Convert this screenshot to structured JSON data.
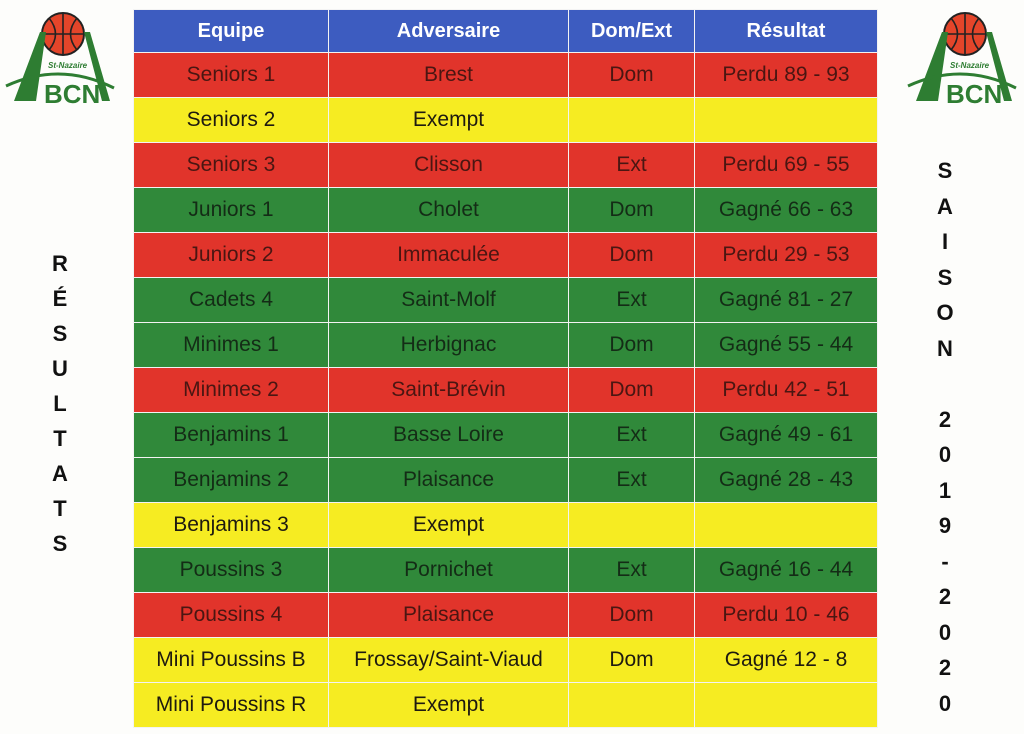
{
  "logo": {
    "text": "St-Nazaire ABCN"
  },
  "table": {
    "headers": [
      "Equipe",
      "Adversaire",
      "Dom/Ext",
      "Résultat"
    ],
    "rows": [
      {
        "equipe": "Seniors 1",
        "adversaire": "Brest",
        "lieu": "Dom",
        "resultat": "Perdu 89 - 93",
        "status": "red"
      },
      {
        "equipe": "Seniors 2",
        "adversaire": "Exempt",
        "lieu": "",
        "resultat": "",
        "status": "yellow"
      },
      {
        "equipe": "Seniors 3",
        "adversaire": "Clisson",
        "lieu": "Ext",
        "resultat": "Perdu 69 - 55",
        "status": "red"
      },
      {
        "equipe": "Juniors 1",
        "adversaire": "Cholet",
        "lieu": "Dom",
        "resultat": "Gagné 66 - 63",
        "status": "green"
      },
      {
        "equipe": "Juniors 2",
        "adversaire": "Immaculée",
        "lieu": "Dom",
        "resultat": "Perdu 29 - 53",
        "status": "red"
      },
      {
        "equipe": "Cadets 4",
        "adversaire": "Saint-Molf",
        "lieu": "Ext",
        "resultat": "Gagné 81 - 27",
        "status": "green"
      },
      {
        "equipe": "Minimes 1",
        "adversaire": "Herbignac",
        "lieu": "Dom",
        "resultat": "Gagné 55 - 44",
        "status": "green"
      },
      {
        "equipe": "Minimes 2",
        "adversaire": "Saint-Brévin",
        "lieu": "Dom",
        "resultat": "Perdu 42 - 51",
        "status": "red"
      },
      {
        "equipe": "Benjamins 1",
        "adversaire": "Basse Loire",
        "lieu": "Ext",
        "resultat": "Gagné 49 - 61",
        "status": "green"
      },
      {
        "equipe": "Benjamins 2",
        "adversaire": "Plaisance",
        "lieu": "Ext",
        "resultat": "Gagné 28 - 43",
        "status": "green"
      },
      {
        "equipe": "Benjamins 3",
        "adversaire": "Exempt",
        "lieu": "",
        "resultat": "",
        "status": "yellow"
      },
      {
        "equipe": "Poussins 3",
        "adversaire": "Pornichet",
        "lieu": "Ext",
        "resultat": "Gagné 16 - 44",
        "status": "green"
      },
      {
        "equipe": "Poussins 4",
        "adversaire": "Plaisance",
        "lieu": "Dom",
        "resultat": "Perdu 10 - 46",
        "status": "red"
      },
      {
        "equipe": "Mini Poussins B",
        "adversaire": "Frossay/Saint-Viaud",
        "lieu": "Dom",
        "resultat": "Gagné 12 - 8",
        "status": "yellow"
      },
      {
        "equipe": "Mini Poussins R",
        "adversaire": "Exempt",
        "lieu": "",
        "resultat": "",
        "status": "yellow"
      }
    ]
  },
  "side_left": "RÉSULTATS",
  "side_right": "SAISON 2019-2020",
  "colors": {
    "header": "#3d5cc0",
    "red": "#e1342b",
    "yellow": "#f6ec22",
    "green": "#30893a",
    "logo_green": "#2e7d32",
    "ball": "#e4452a"
  }
}
